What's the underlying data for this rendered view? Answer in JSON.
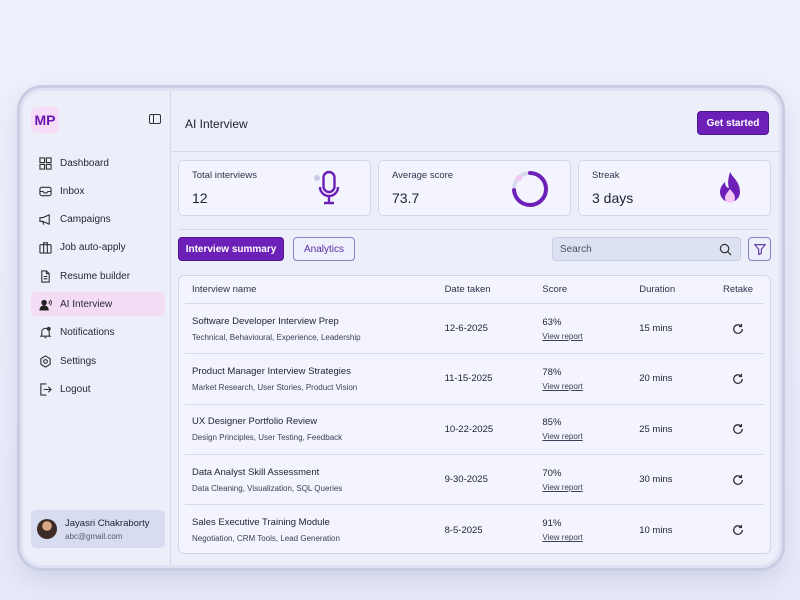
{
  "app": {
    "logo": "MP",
    "accent": "#6c20b8",
    "accent_light": "#f4dcf5"
  },
  "sidebar": {
    "toggle_icon": "sidebar-toggle-icon",
    "items": [
      {
        "label": "Dashboard",
        "icon": "grid-icon",
        "active": false
      },
      {
        "label": "Inbox",
        "icon": "inbox-icon",
        "active": false
      },
      {
        "label": "Campaigns",
        "icon": "megaphone-icon",
        "active": false
      },
      {
        "label": "Job auto-apply",
        "icon": "briefcase-icon",
        "active": false
      },
      {
        "label": "Resume builder",
        "icon": "document-icon",
        "active": false
      },
      {
        "label": "AI Interview",
        "icon": "person-voice-icon",
        "active": true
      },
      {
        "label": "Notifications",
        "icon": "bell-icon",
        "active": false
      },
      {
        "label": "Settings",
        "icon": "gear-icon",
        "active": false
      },
      {
        "label": "Logout",
        "icon": "logout-icon",
        "active": false
      }
    ],
    "user": {
      "name": "Jayasri Chakraborty",
      "email": "abc@gmail.com"
    }
  },
  "header": {
    "title": "AI Interview",
    "cta_label": "Get started"
  },
  "stats": [
    {
      "label": "Total interviews",
      "value": "12",
      "icon": "microphone-icon"
    },
    {
      "label": "Average score",
      "value": "73.7",
      "icon": "progress-ring-icon",
      "progress": 0.737
    },
    {
      "label": "Streak",
      "value": "3 days",
      "icon": "flame-icon"
    }
  ],
  "tabs": {
    "summary": "Interview summary",
    "analytics": "Analytics"
  },
  "search": {
    "placeholder": "Search"
  },
  "table": {
    "headers": [
      "Interview name",
      "Date taken",
      "Score",
      "Duration",
      "Retake"
    ],
    "link_label": "View report",
    "rows": [
      {
        "title": "Software Developer Interview Prep",
        "tags": "Technical, Behavioural, Experience, Leadership",
        "date": "12-6-2025",
        "score": "63%",
        "duration": "15 mins"
      },
      {
        "title": "Product Manager Interview Strategies",
        "tags": "Market Research, User Stories, Product Vision",
        "date": "11-15-2025",
        "score": "78%",
        "duration": "20 mins"
      },
      {
        "title": "UX Designer Portfolio Review",
        "tags": "Design Principles, User Testing, Feedback",
        "date": "10-22-2025",
        "score": "85%",
        "duration": "25 mins"
      },
      {
        "title": "Data Analyst Skill Assessment",
        "tags": "Data Cleaning, Visualization, SQL Queries",
        "date": "9-30-2025",
        "score": "70%",
        "duration": "30 mins"
      },
      {
        "title": "Sales Executive Training Module",
        "tags": "Negotiation, CRM Tools, Lead Generation",
        "date": "8-5-2025",
        "score": "91%",
        "duration": "10 mins"
      }
    ]
  }
}
